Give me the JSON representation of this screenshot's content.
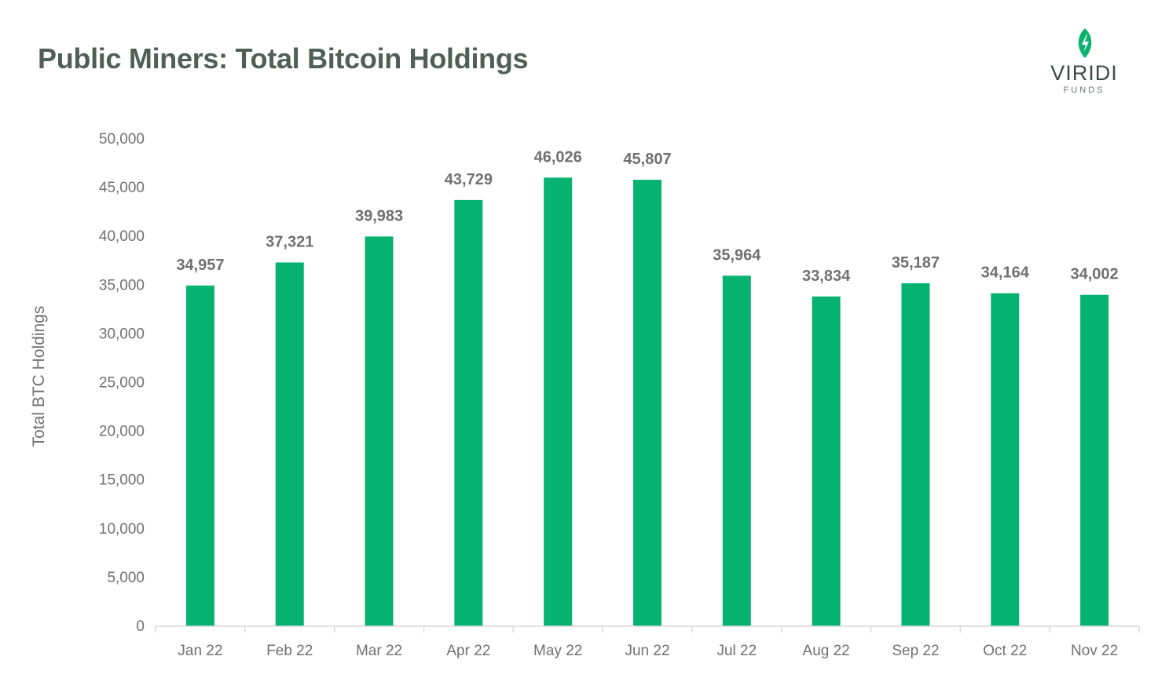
{
  "header": {
    "title": "Public Miners: Total Bitcoin Holdings"
  },
  "logo": {
    "name": "VIRIDI",
    "sub": "FUNDS",
    "icon": "leaf-lightning-icon",
    "color": "#0ab26e"
  },
  "chart_data": {
    "type": "bar",
    "title": "Public Miners: Total Bitcoin Holdings",
    "xlabel": "",
    "ylabel": "Total BTC Holdings",
    "categories": [
      "Jan 22",
      "Feb 22",
      "Mar 22",
      "Apr 22",
      "May 22",
      "Jun 22",
      "Jul 22",
      "Aug 22",
      "Sep 22",
      "Oct 22",
      "Nov 22"
    ],
    "values": [
      34957,
      37321,
      39983,
      43729,
      46026,
      45807,
      35964,
      33834,
      35187,
      34164,
      34002
    ],
    "data_labels": [
      "34,957",
      "37,321",
      "39,983",
      "43,729",
      "46,026",
      "45,807",
      "35,964",
      "33,834",
      "35,187",
      "34,164",
      "34,002"
    ],
    "ylim": [
      0,
      50000
    ],
    "yticks": [
      0,
      5000,
      10000,
      15000,
      20000,
      25000,
      30000,
      35000,
      40000,
      45000,
      50000
    ],
    "ytick_labels": [
      "0",
      "5,000",
      "10,000",
      "15,000",
      "20,000",
      "25,000",
      "30,000",
      "35,000",
      "40,000",
      "45,000",
      "50,000"
    ],
    "grid": false,
    "legend": "none",
    "bar_color": "#06b270"
  }
}
